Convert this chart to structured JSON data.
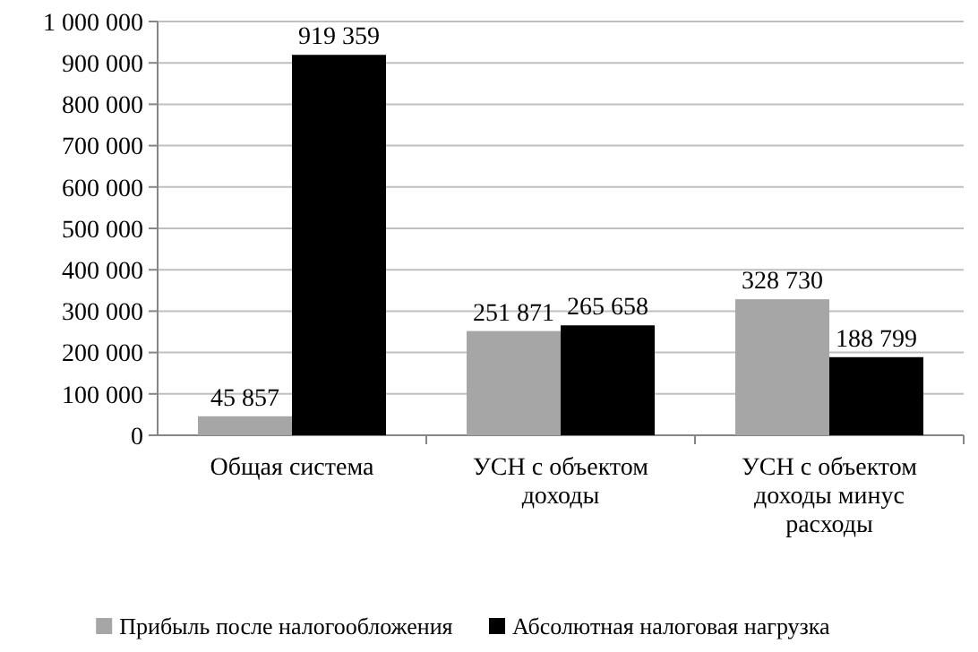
{
  "chart_data": {
    "type": "bar",
    "categories": [
      "Общая система",
      "УСН с объектом доходы",
      "УСН с объектом доходы минус расходы"
    ],
    "series": [
      {
        "name": "Прибыль после налогообложения",
        "color": "#a6a6a6",
        "values": [
          45857,
          251871,
          328730
        ],
        "value_labels": [
          "45 857",
          "251 871",
          "328 730"
        ]
      },
      {
        "name": "Абсолютная налоговая нагрузка",
        "color": "#000000",
        "values": [
          919359,
          265658,
          188799
        ],
        "value_labels": [
          "919 359",
          "265 658",
          "188 799"
        ]
      }
    ],
    "ylim": [
      0,
      1000000
    ],
    "yticks": [
      {
        "value": 0,
        "label": "0"
      },
      {
        "value": 100000,
        "label": "100 000"
      },
      {
        "value": 200000,
        "label": "200 000"
      },
      {
        "value": 300000,
        "label": "300 000"
      },
      {
        "value": 400000,
        "label": "400 000"
      },
      {
        "value": 500000,
        "label": "500 000"
      },
      {
        "value": 600000,
        "label": "600 000"
      },
      {
        "value": 700000,
        "label": "700 000"
      },
      {
        "value": 800000,
        "label": "800 000"
      },
      {
        "value": 900000,
        "label": "900 000"
      },
      {
        "value": 1000000,
        "label": "1 000 000"
      }
    ],
    "grid": "y",
    "legend": "bottom"
  }
}
